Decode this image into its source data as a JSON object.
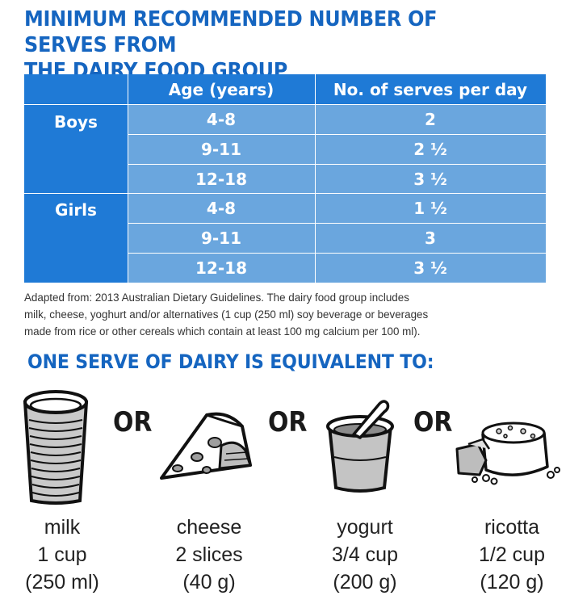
{
  "title": {
    "line1": "MINIMUM RECOMMENDED NUMBER OF SERVES FROM",
    "line2": "THE DAIRY FOOD GROUP"
  },
  "table": {
    "headers": [
      "Age (years)",
      "No. of serves per day"
    ],
    "groups": [
      {
        "label": "Boys",
        "rows": [
          {
            "age": "4-8",
            "serves": "2"
          },
          {
            "age": "9-11",
            "serves": "2 ½"
          },
          {
            "age": "12-18",
            "serves": "3 ½"
          }
        ]
      },
      {
        "label": "Girls",
        "rows": [
          {
            "age": "4-8",
            "serves": "1 ½"
          },
          {
            "age": "9-11",
            "serves": "3"
          },
          {
            "age": "12-18",
            "serves": "3 ½"
          }
        ]
      }
    ]
  },
  "note": {
    "line1": "Adapted from: 2013 Australian Dietary Guidelines. The dairy food group includes",
    "line2": "milk, cheese, yoghurt and/or alternatives (1 cup (250 ml) soy beverage or beverages",
    "line3": "made from rice or other cereals which contain at least 100 mg calcium per 100 ml)."
  },
  "subtitle": "ONE SERVE OF DAIRY IS EQUIVALENT TO:",
  "or_label": "OR",
  "items": [
    {
      "name": "milk",
      "amount": "1 cup",
      "measure": "(250 ml)",
      "icon": "milk-glass-icon"
    },
    {
      "name": "cheese",
      "amount": "2 slices",
      "measure": "(40 g)",
      "icon": "cheese-wedge-icon"
    },
    {
      "name": "yogurt",
      "amount": "3/4 cup",
      "measure": "(200 g)",
      "icon": "yogurt-cup-icon"
    },
    {
      "name": "ricotta",
      "amount": "1/2 cup",
      "measure": "(120 g)",
      "icon": "ricotta-cheese-icon"
    }
  ],
  "colors": {
    "title_blue": "#1565c0",
    "header_blue": "#1f7ad6",
    "row_blue": "#6aa6de"
  }
}
